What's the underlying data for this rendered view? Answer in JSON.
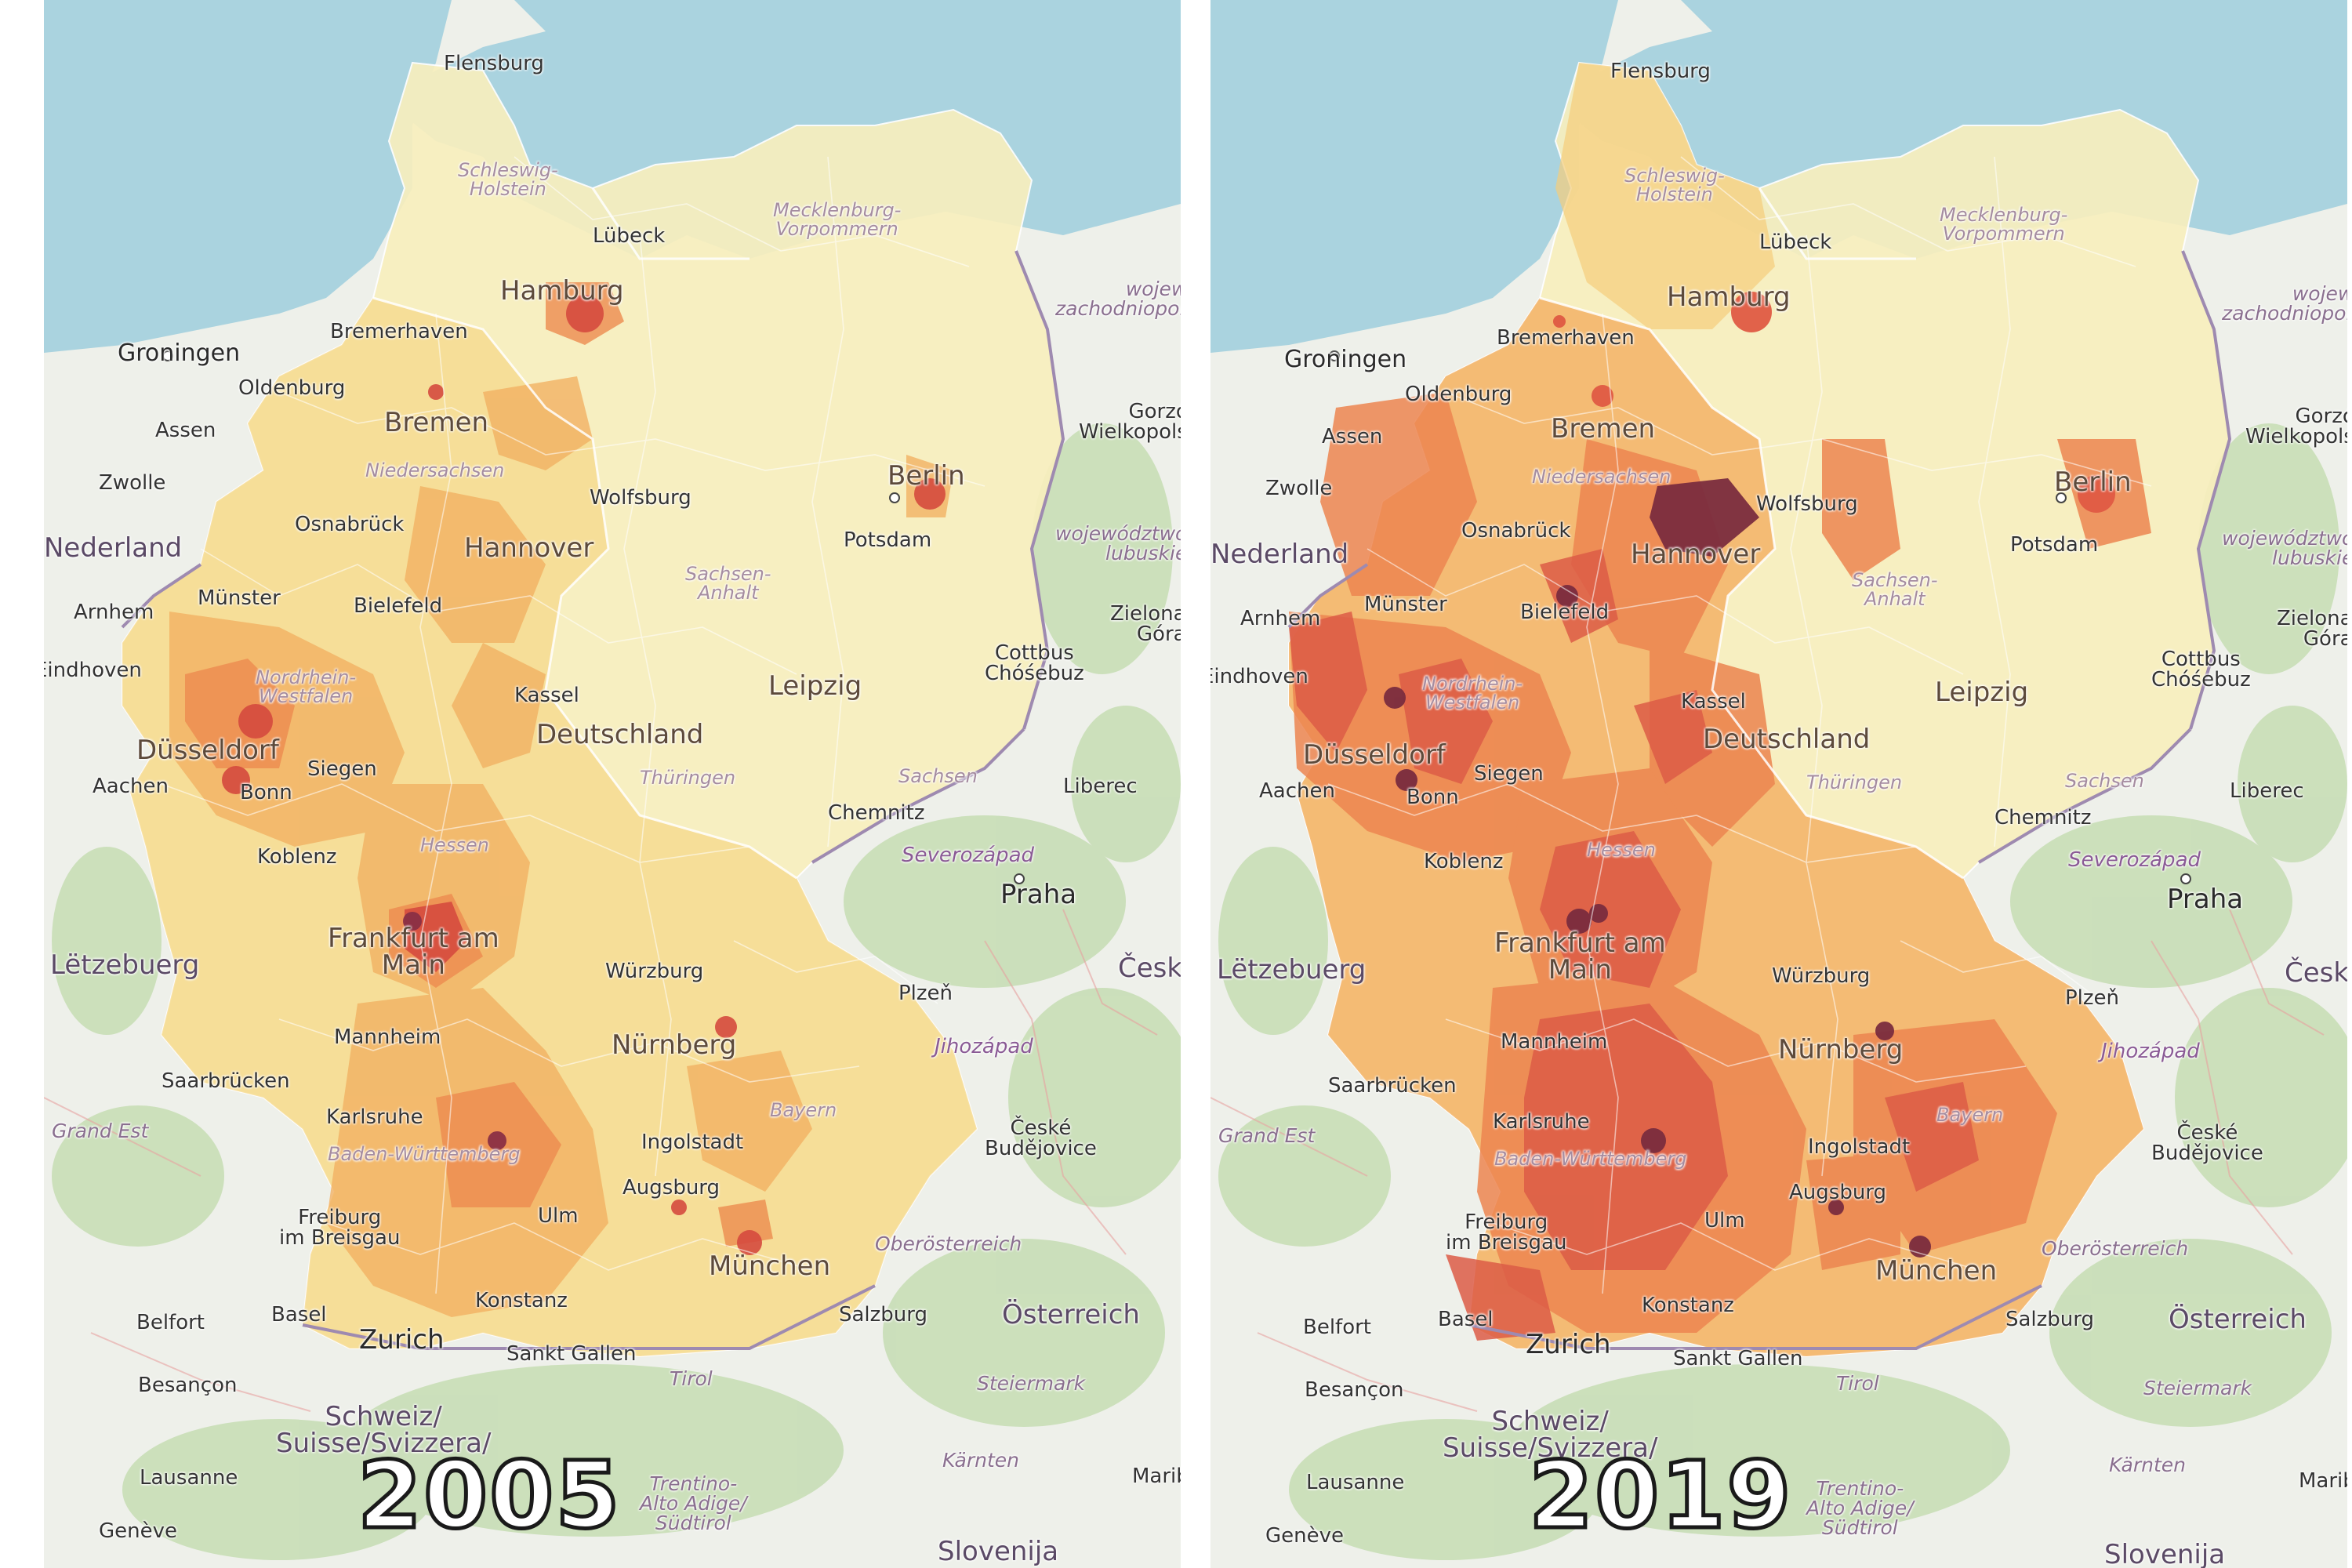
{
  "colors": {
    "sea": "#aad3df",
    "land": "#eef0ea",
    "forest": "#c6ddb3",
    "border": "#9e8ab0",
    "scale": [
      "#f7edb8",
      "#f6dc8e",
      "#f5c271",
      "#f1a35a",
      "#ea7d4d",
      "#dc5a45",
      "#b43e4a",
      "#6e2838"
    ]
  },
  "panels": [
    {
      "year": "2005",
      "labels": {
        "flensburg": "Flensburg",
        "schleswig": "Schleswig-\nHolstein",
        "lubeck": "Lübeck",
        "hamburg": "Hamburg",
        "mecklenburg": "Mecklenburg-\nVorpommern",
        "bremerhaven": "Bremerhaven",
        "groningen": "Groningen",
        "oldenburg": "Oldenburg",
        "bremen": "Bremen",
        "assen": "Assen",
        "zwolle": "Zwolle",
        "niedersachsen": "Niedersachsen",
        "wolfsburg": "Wolfsburg",
        "osnabruck": "Osnabrück",
        "hannover": "Hannover",
        "berlin": "Berlin",
        "potsdam": "Potsdam",
        "nederland": "Nederland",
        "arnhem": "Arnhem",
        "munster": "Münster",
        "bielefeld": "Bielefeld",
        "sachsenanhalt": "Sachsen-\nAnhalt",
        "eindhoven": "Eindhoven",
        "nrw": "Nordrhein-\nWestfalen",
        "kassel": "Kassel",
        "leipzig": "Leipzig",
        "cottbus": "Cottbus\nChóśebuz",
        "dusseldorf": "Düsseldorf",
        "deutschland": "Deutschland",
        "aachen": "Aachen",
        "bonn": "Bonn",
        "siegen": "Siegen",
        "thuringen": "Thüringen",
        "sachsen": "Sachsen",
        "chemnitz": "Chemnitz",
        "liberec": "Liberec",
        "koblenz": "Koblenz",
        "hessen": "Hessen",
        "severozapad": "Severozápad",
        "praha": "Praha",
        "letzebuerg": "Lëtzebuerg",
        "frankfurt": "Frankfurt am\nMain",
        "wurzburg": "Würzburg",
        "plzen": "Plzeň",
        "mannheim": "Mannheim",
        "nurnberg": "Nürnberg",
        "jihozapad": "Jihozápad",
        "saarbrucken": "Saarbrücken",
        "grandest": "Grand Est",
        "karlsruhe": "Karlsruhe",
        "bayern": "Bayern",
        "ceske": "České\nBudějovice",
        "bw": "Baden-Württemberg",
        "ingolstadt": "Ingolstadt",
        "augsburg": "Augsburg",
        "freiburg": "Freiburg\nim Breisgau",
        "ulm": "Ulm",
        "oberosterreich": "Oberösterreich",
        "munchen": "München",
        "belfort": "Belfort",
        "basel": "Basel",
        "konstanz": "Konstanz",
        "zurich": "Zurich",
        "salzburg": "Salzburg",
        "osterreich": "Österreich",
        "besancon": "Besançon",
        "sanktgallen": "Sankt Gallen",
        "tirol": "Tirol",
        "steiermark": "Steiermark",
        "schweiz": "Schweiz/\nSuisse/Svizzera/",
        "lausanne": "Lausanne",
        "karnten": "Kärnten",
        "trentino": "Trentino-\nAlto Adige/\nSüdtirol",
        "geneve": "Genève",
        "slovenija": "Slovenija",
        "gorzow": "Gorzów\nWielkopolski",
        "zachodniopomorskie": "województwo\nzachodniopomorskie",
        "lubuskie": "województwo\nlubuskie",
        "zielona": "Zielona\nGóra",
        "mari": "Maribor",
        "ceska": "Česká"
      }
    },
    {
      "year": "2019",
      "labels": {
        "flensburg": "Flensburg",
        "schleswig": "Schleswig-\nHolstein",
        "lubeck": "Lübeck",
        "hamburg": "Hamburg",
        "mecklenburg": "Mecklenburg-\nVorpommern",
        "bremerhaven": "Bremerhaven",
        "groningen": "Groningen",
        "oldenburg": "Oldenburg",
        "bremen": "Bremen",
        "assen": "Assen",
        "zwolle": "Zwolle",
        "niedersachsen": "Niedersachsen",
        "wolfsburg": "Wolfsburg",
        "osnabruck": "Osnabrück",
        "hannover": "Hannover",
        "berlin": "Berlin",
        "potsdam": "Potsdam",
        "nederland": "Nederland",
        "arnhem": "Arnhem",
        "munster": "Münster",
        "bielefeld": "Bielefeld",
        "sachsenanhalt": "Sachsen-\nAnhalt",
        "eindhoven": "Eindhoven",
        "nrw": "Nordrhein-\nWestfalen",
        "kassel": "Kassel",
        "leipzig": "Leipzig",
        "cottbus": "Cottbus\nChóśebuz",
        "dusseldorf": "Düsseldorf",
        "deutschland": "Deutschland",
        "aachen": "Aachen",
        "bonn": "Bonn",
        "siegen": "Siegen",
        "thuringen": "Thüringen",
        "sachsen": "Sachsen",
        "chemnitz": "Chemnitz",
        "liberec": "Liberec",
        "koblenz": "Koblenz",
        "hessen": "Hessen",
        "severozapad": "Severozápad",
        "praha": "Praha",
        "letzebuerg": "Lëtzebuerg",
        "frankfurt": "Frankfurt am\nMain",
        "wurzburg": "Würzburg",
        "plzen": "Plzeň",
        "mannheim": "Mannheim",
        "nurnberg": "Nürnberg",
        "jihozapad": "Jihozápad",
        "saarbrucken": "Saarbrücken",
        "grandest": "Grand Est",
        "karlsruhe": "Karlsruhe",
        "bayern": "Bayern",
        "ceske": "České\nBudějovice",
        "bw": "Baden-Württemberg",
        "ingolstadt": "Ingolstadt",
        "augsburg": "Augsburg",
        "freiburg": "Freiburg\nim Breisgau",
        "ulm": "Ulm",
        "oberosterreich": "Oberösterreich",
        "munchen": "München",
        "belfort": "Belfort",
        "basel": "Basel",
        "konstanz": "Konstanz",
        "zurich": "Zurich",
        "salzburg": "Salzburg",
        "osterreich": "Österreich",
        "besancon": "Besançon",
        "sanktgallen": "Sankt Gallen",
        "tirol": "Tirol",
        "steiermark": "Steiermark",
        "schweiz": "Schweiz/\nSuisse/Svizzera/",
        "lausanne": "Lausanne",
        "karnten": "Kärnten",
        "trentino": "Trentino-\nAlto Adige/\nSüdtirol",
        "geneve": "Genève",
        "slovenija": "Slovenija",
        "gorzow": "Gorzów\nWielkopolski",
        "zachodniopomorskie": "województwo\nzachodniopomorskie",
        "lubuskie": "województwo\nlubuskie",
        "zielona": "Zielona\nGóra",
        "mari": "Maribor",
        "ceska": "Česká"
      }
    }
  ]
}
